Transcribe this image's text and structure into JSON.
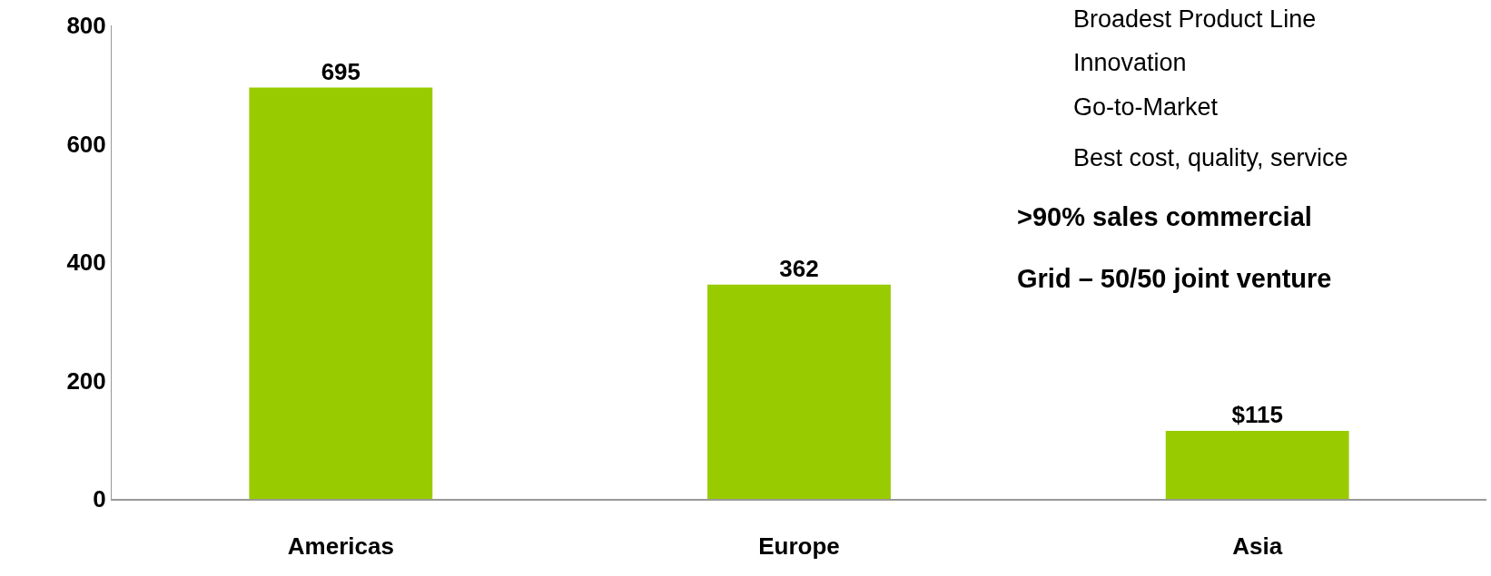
{
  "chart_data": {
    "type": "bar",
    "categories": [
      "Americas",
      "Europe",
      "Asia"
    ],
    "values": [
      695,
      362,
      115
    ],
    "value_labels": [
      "695",
      "362",
      "$115"
    ],
    "color": "#99cc00",
    "ylim": [
      0,
      800
    ],
    "yticks": [
      0,
      200,
      400,
      600,
      800
    ],
    "annotations": [
      "Broadest Product Line",
      "Innovation",
      "Go-to-Market",
      "Best cost, quality, service",
      ">90% sales commercial",
      "Grid – 50/50 joint venture"
    ]
  }
}
